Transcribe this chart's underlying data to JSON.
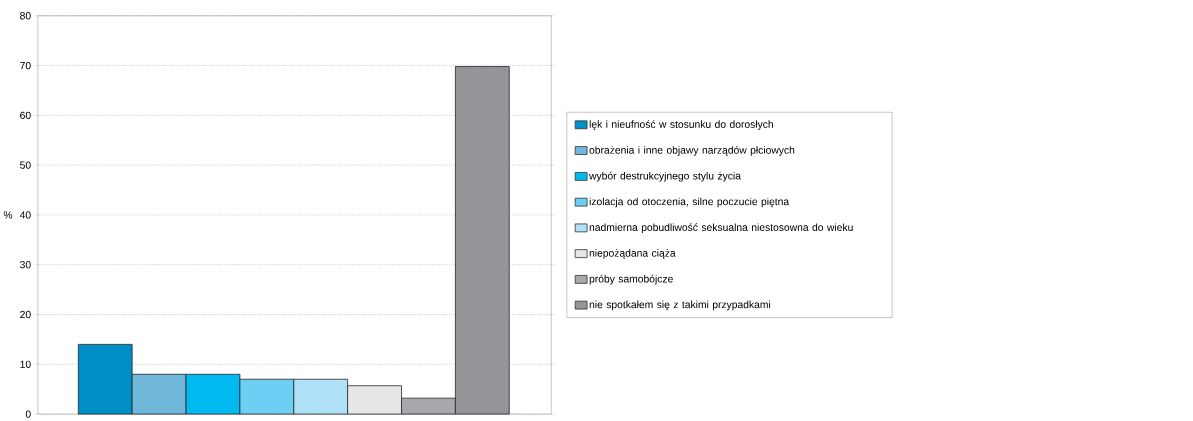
{
  "chart_data": {
    "type": "bar",
    "ylabel": "%",
    "categories": [
      null
    ],
    "series": [
      {
        "name": "lęk i nieufność w stosunku do dorosłych",
        "color": "#008fc5",
        "values": [
          14
        ]
      },
      {
        "name": "obrażenia i inne objawy narządów płciowych",
        "color": "#6fb8dc",
        "values": [
          8
        ]
      },
      {
        "name": "wybór destrukcyjnego stylu życia",
        "color": "#00b9f1",
        "values": [
          8
        ]
      },
      {
        "name": "izolacja od otoczenia, silne poczucie piętna",
        "color": "#6ccff3",
        "values": [
          7
        ]
      },
      {
        "name": "nadmierna pobudliwość seksualna niestosowna do wieku",
        "color": "#aee0f8",
        "values": [
          7
        ]
      },
      {
        "name": "niepożądana ciąża",
        "color": "#e6e7e8",
        "values": [
          5.7
        ]
      },
      {
        "name": "próby samobójcze",
        "color": "#a7a9ac",
        "values": [
          3.2
        ]
      },
      {
        "name": "nie spotkałem się z takimi przypadkami",
        "color": "#939598",
        "values": [
          69.8
        ]
      }
    ],
    "ylim": [
      0,
      80
    ],
    "yticks": [
      0,
      10,
      20,
      30,
      40,
      50,
      60,
      70,
      80
    ],
    "grid": "y",
    "legend": "right"
  }
}
